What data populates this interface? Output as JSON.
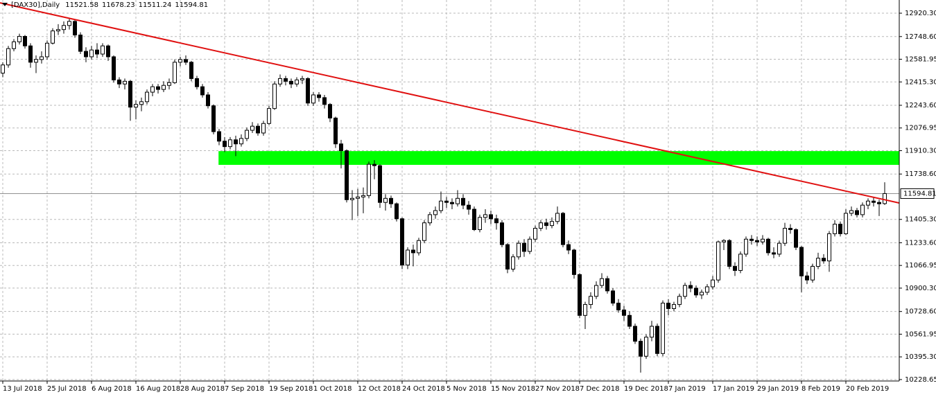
{
  "chart_data": {
    "type": "candlestick",
    "title": "[DAX30],Daily",
    "up_color": "#ffffff",
    "down_color": "#000000",
    "grid": true,
    "ylim": [
      10218,
      13007
    ],
    "yticks": [
      {
        "value": 12920.3,
        "label": "12920.30"
      },
      {
        "value": 12748.6,
        "label": "12748.60"
      },
      {
        "value": 12581.95,
        "label": "12581.95"
      },
      {
        "value": 12415.3,
        "label": "12415.30"
      },
      {
        "value": 12243.6,
        "label": "12243.60"
      },
      {
        "value": 12076.95,
        "label": "12076.95"
      },
      {
        "value": 11910.3,
        "label": "11910.30"
      },
      {
        "value": 11738.6,
        "label": "11738.60"
      },
      {
        "value": 11405.3,
        "label": "11405.30"
      },
      {
        "value": 11233.6,
        "label": "11233.60"
      },
      {
        "value": 11066.95,
        "label": "11066.95"
      },
      {
        "value": 10900.3,
        "label": "10900.30"
      },
      {
        "value": 10728.6,
        "label": "10728.60"
      },
      {
        "value": 10561.95,
        "label": "10561.95"
      },
      {
        "value": 10395.3,
        "label": "10395.30"
      },
      {
        "value": 10228.65,
        "label": "10228.65"
      }
    ],
    "categories": [
      "13 Jul 2018",
      null,
      null,
      null,
      null,
      null,
      null,
      null,
      "25 Jul 2018",
      null,
      null,
      null,
      null,
      null,
      null,
      null,
      "6 Aug 2018",
      null,
      null,
      null,
      null,
      null,
      null,
      null,
      "16 Aug 2018",
      null,
      null,
      null,
      null,
      null,
      null,
      null,
      "28 Aug 2018",
      null,
      null,
      null,
      null,
      null,
      null,
      null,
      "7 Sep 2018",
      null,
      null,
      null,
      null,
      null,
      null,
      null,
      "19 Sep 2018",
      null,
      null,
      null,
      null,
      null,
      null,
      null,
      "1 Oct 2018",
      null,
      null,
      null,
      null,
      null,
      null,
      null,
      "12 Oct 2018",
      null,
      null,
      null,
      null,
      null,
      null,
      null,
      "24 Oct 2018",
      null,
      null,
      null,
      null,
      null,
      null,
      null,
      "5 Nov 2018",
      null,
      null,
      null,
      null,
      null,
      null,
      null,
      "15 Nov 2018",
      null,
      null,
      null,
      null,
      null,
      null,
      null,
      "27 Nov 2018",
      null,
      null,
      null,
      null,
      null,
      null,
      null,
      "7 Dec 2018",
      null,
      null,
      null,
      null,
      null,
      null,
      null,
      "19 Dec 2018",
      null,
      null,
      null,
      null,
      null,
      null,
      null,
      "7 Jan 2019",
      null,
      null,
      null,
      null,
      null,
      null,
      null,
      "17 Jan 2019",
      null,
      null,
      null,
      null,
      null,
      null,
      null,
      "29 Jan 2019",
      null,
      null,
      null,
      null,
      null,
      null,
      null,
      "8 Feb 2019",
      null,
      null,
      null,
      null,
      null,
      null,
      null,
      "20 Feb 2019",
      null,
      null,
      null,
      null,
      null,
      null,
      null
    ],
    "candles": [
      [
        12480,
        12560,
        12450,
        12540
      ],
      [
        12540,
        12680,
        12520,
        12660
      ],
      [
        12660,
        12730,
        12640,
        12710
      ],
      [
        12710,
        12770,
        12690,
        12750
      ],
      [
        12750,
        12760,
        12660,
        12680
      ],
      [
        12680,
        12700,
        12520,
        12560
      ],
      [
        12560,
        12610,
        12480,
        12580
      ],
      [
        12580,
        12640,
        12550,
        12600
      ],
      [
        12600,
        12720,
        12580,
        12700
      ],
      [
        12700,
        12810,
        12690,
        12790
      ],
      [
        12790,
        12840,
        12760,
        12800
      ],
      [
        12800,
        12860,
        12770,
        12830
      ],
      [
        12830,
        12880,
        12800,
        12860
      ],
      [
        12860,
        12870,
        12740,
        12760
      ],
      [
        12760,
        12780,
        12620,
        12640
      ],
      [
        12640,
        12670,
        12560,
        12600
      ],
      [
        12600,
        12680,
        12580,
        12650
      ],
      [
        12650,
        12700,
        12590,
        12620
      ],
      [
        12620,
        12700,
        12600,
        12680
      ],
      [
        12680,
        12690,
        12570,
        12600
      ],
      [
        12600,
        12610,
        12410,
        12430
      ],
      [
        12430,
        12450,
        12370,
        12400
      ],
      [
        12400,
        12440,
        12360,
        12420
      ],
      [
        12420,
        12430,
        12130,
        12230
      ],
      [
        12230,
        12280,
        12140,
        12250
      ],
      [
        12250,
        12300,
        12200,
        12270
      ],
      [
        12270,
        12360,
        12250,
        12340
      ],
      [
        12340,
        12400,
        12310,
        12380
      ],
      [
        12380,
        12400,
        12330,
        12360
      ],
      [
        12360,
        12420,
        12340,
        12390
      ],
      [
        12390,
        12440,
        12360,
        12410
      ],
      [
        12410,
        12580,
        12400,
        12560
      ],
      [
        12560,
        12600,
        12530,
        12580
      ],
      [
        12580,
        12610,
        12540,
        12560
      ],
      [
        12560,
        12570,
        12420,
        12440
      ],
      [
        12440,
        12460,
        12360,
        12380
      ],
      [
        12380,
        12400,
        12300,
        12320
      ],
      [
        12320,
        12340,
        12220,
        12240
      ],
      [
        12240,
        12250,
        12030,
        12050
      ],
      [
        12050,
        12070,
        11950,
        11980
      ],
      [
        11980,
        12010,
        11900,
        11940
      ],
      [
        11940,
        12010,
        11920,
        11990
      ],
      [
        11990,
        12020,
        11870,
        11960
      ],
      [
        11960,
        12030,
        11940,
        12000
      ],
      [
        12000,
        12080,
        11980,
        12060
      ],
      [
        12060,
        12120,
        12040,
        12090
      ],
      [
        12090,
        12110,
        12020,
        12040
      ],
      [
        12040,
        12130,
        12020,
        12110
      ],
      [
        12110,
        12240,
        12100,
        12220
      ],
      [
        12220,
        12420,
        12210,
        12400
      ],
      [
        12400,
        12470,
        12380,
        12440
      ],
      [
        12440,
        12460,
        12390,
        12420
      ],
      [
        12420,
        12440,
        12370,
        12400
      ],
      [
        12400,
        12450,
        12380,
        12430
      ],
      [
        12430,
        12460,
        12400,
        12440
      ],
      [
        12440,
        12450,
        12240,
        12260
      ],
      [
        12260,
        12340,
        12240,
        12320
      ],
      [
        12320,
        12340,
        12270,
        12300
      ],
      [
        12300,
        12320,
        12220,
        12250
      ],
      [
        12250,
        12260,
        12120,
        12150
      ],
      [
        12150,
        12160,
        11930,
        11960
      ],
      [
        11960,
        11990,
        11780,
        11910
      ],
      [
        11910,
        11920,
        11530,
        11550
      ],
      [
        11550,
        11620,
        11400,
        11560
      ],
      [
        11560,
        11630,
        11430,
        11570
      ],
      [
        11570,
        11640,
        11450,
        11580
      ],
      [
        11580,
        11830,
        11560,
        11810
      ],
      [
        11810,
        11840,
        11700,
        11800
      ],
      [
        11800,
        11810,
        11490,
        11530
      ],
      [
        11530,
        11590,
        11470,
        11560
      ],
      [
        11560,
        11580,
        11490,
        11520
      ],
      [
        11520,
        11530,
        11390,
        11410
      ],
      [
        11410,
        11420,
        11040,
        11070
      ],
      [
        11070,
        11200,
        11040,
        11180
      ],
      [
        11180,
        11220,
        11060,
        11160
      ],
      [
        11160,
        11270,
        11140,
        11250
      ],
      [
        11250,
        11400,
        11230,
        11380
      ],
      [
        11380,
        11460,
        11360,
        11440
      ],
      [
        11440,
        11500,
        11410,
        11470
      ],
      [
        11470,
        11610,
        11450,
        11540
      ],
      [
        11540,
        11570,
        11490,
        11530
      ],
      [
        11530,
        11560,
        11480,
        11520
      ],
      [
        11520,
        11620,
        11500,
        11560
      ],
      [
        11560,
        11590,
        11480,
        11510
      ],
      [
        11510,
        11540,
        11440,
        11480
      ],
      [
        11480,
        11500,
        11320,
        11330
      ],
      [
        11330,
        11440,
        11310,
        11420
      ],
      [
        11420,
        11480,
        11380,
        11440
      ],
      [
        11440,
        11470,
        11370,
        11410
      ],
      [
        11410,
        11440,
        11330,
        11380
      ],
      [
        11380,
        11400,
        11200,
        11220
      ],
      [
        11220,
        11230,
        11010,
        11040
      ],
      [
        11040,
        11150,
        11020,
        11130
      ],
      [
        11130,
        11250,
        11110,
        11230
      ],
      [
        11230,
        11260,
        11130,
        11170
      ],
      [
        11170,
        11280,
        11150,
        11260
      ],
      [
        11260,
        11360,
        11240,
        11340
      ],
      [
        11340,
        11400,
        11320,
        11380
      ],
      [
        11380,
        11410,
        11330,
        11360
      ],
      [
        11360,
        11420,
        11340,
        11390
      ],
      [
        11390,
        11500,
        11370,
        11450
      ],
      [
        11450,
        11460,
        11200,
        11220
      ],
      [
        11220,
        11250,
        11150,
        11180
      ],
      [
        11180,
        11190,
        10970,
        11000
      ],
      [
        11000,
        11010,
        10680,
        10700
      ],
      [
        10700,
        10800,
        10600,
        10780
      ],
      [
        10780,
        10870,
        10750,
        10840
      ],
      [
        10840,
        10950,
        10820,
        10920
      ],
      [
        10920,
        11010,
        10900,
        10970
      ],
      [
        10970,
        10990,
        10860,
        10880
      ],
      [
        10880,
        10900,
        10770,
        10790
      ],
      [
        10790,
        10820,
        10720,
        10740
      ],
      [
        10740,
        10770,
        10660,
        10700
      ],
      [
        10700,
        10730,
        10600,
        10620
      ],
      [
        10620,
        10640,
        10490,
        10510
      ],
      [
        10510,
        10530,
        10280,
        10400
      ],
      [
        10400,
        10560,
        10380,
        10540
      ],
      [
        10540,
        10660,
        10510,
        10620
      ],
      [
        10620,
        10640,
        10400,
        10420
      ],
      [
        10420,
        10810,
        10400,
        10790
      ],
      [
        10790,
        10820,
        10700,
        10750
      ],
      [
        10750,
        10800,
        10730,
        10780
      ],
      [
        10780,
        10860,
        10760,
        10840
      ],
      [
        10840,
        10940,
        10820,
        10920
      ],
      [
        10920,
        10950,
        10870,
        10900
      ],
      [
        10900,
        10920,
        10830,
        10850
      ],
      [
        10850,
        10890,
        10820,
        10870
      ],
      [
        10870,
        10930,
        10850,
        10910
      ],
      [
        10910,
        10990,
        10890,
        10960
      ],
      [
        10960,
        11250,
        10940,
        11240
      ],
      [
        11240,
        11260,
        11180,
        11250
      ],
      [
        11250,
        11260,
        11040,
        11060
      ],
      [
        11060,
        11090,
        10990,
        11030
      ],
      [
        11030,
        11170,
        11010,
        11150
      ],
      [
        11150,
        11280,
        11130,
        11260
      ],
      [
        11260,
        11290,
        11220,
        11250
      ],
      [
        11250,
        11280,
        11210,
        11240
      ],
      [
        11240,
        11290,
        11220,
        11260
      ],
      [
        11260,
        11270,
        11140,
        11160
      ],
      [
        11160,
        11200,
        11120,
        11150
      ],
      [
        11150,
        11250,
        11130,
        11230
      ],
      [
        11230,
        11380,
        11210,
        11340
      ],
      [
        11340,
        11370,
        11300,
        11330
      ],
      [
        11330,
        11340,
        11180,
        11200
      ],
      [
        11200,
        11210,
        10870,
        10990
      ],
      [
        10990,
        11020,
        10930,
        10960
      ],
      [
        10960,
        11080,
        10940,
        11060
      ],
      [
        11060,
        11160,
        11040,
        11120
      ],
      [
        11120,
        11150,
        11080,
        11100
      ],
      [
        11100,
        11320,
        11020,
        11300
      ],
      [
        11300,
        11400,
        11280,
        11370
      ],
      [
        11370,
        11390,
        11280,
        11300
      ],
      [
        11300,
        11480,
        11290,
        11450
      ],
      [
        11450,
        11500,
        11430,
        11470
      ],
      [
        11470,
        11490,
        11420,
        11440
      ],
      [
        11440,
        11530,
        11420,
        11510
      ],
      [
        11510,
        11560,
        11480,
        11540
      ],
      [
        11540,
        11570,
        11500,
        11530
      ],
      [
        11530,
        11550,
        11430,
        11520
      ],
      [
        11521.58,
        11678.23,
        11511.24,
        11594.81
      ]
    ],
    "trendline": {
      "color": "#e01010",
      "x": [
        -0.5,
        161.6
      ],
      "y": [
        12996,
        11526
      ]
    },
    "zone": {
      "color": "#00ff00",
      "x": [
        38.9,
        161.6
      ],
      "y": [
        11806,
        11907
      ]
    }
  }
}
